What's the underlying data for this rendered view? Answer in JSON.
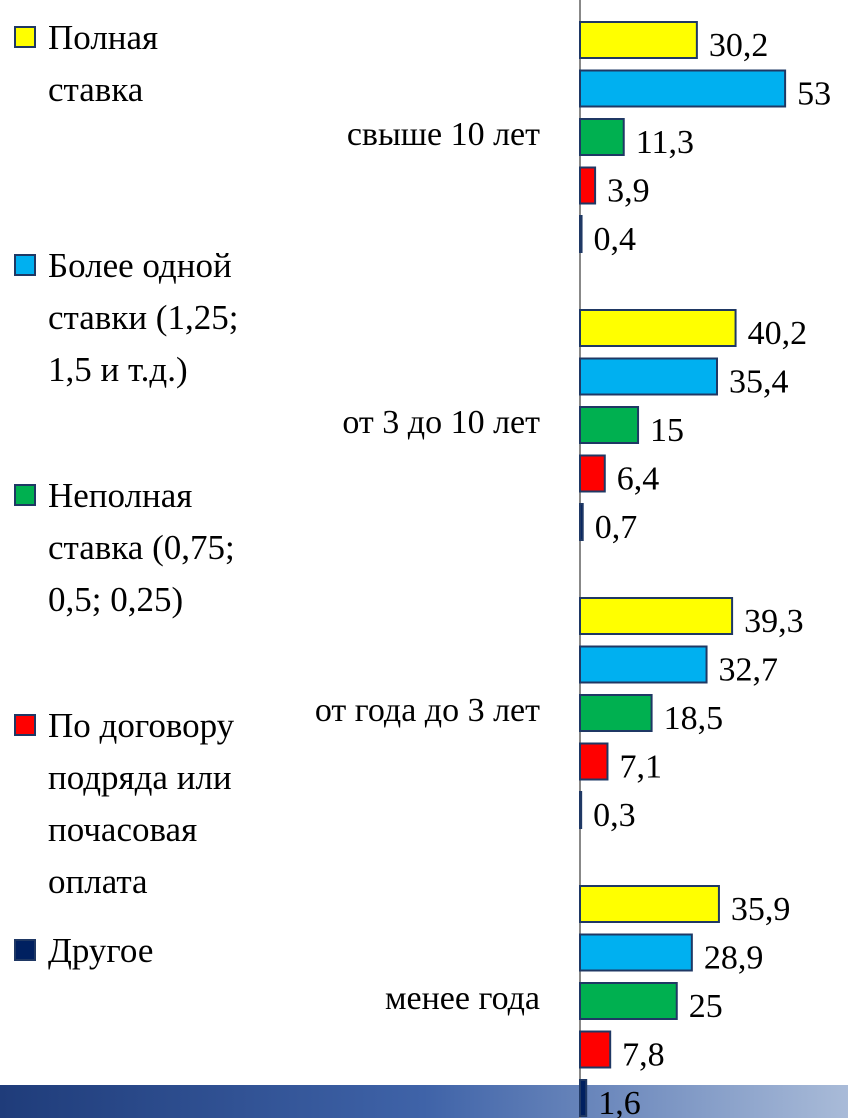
{
  "chart_data": {
    "type": "bar",
    "orientation": "horizontal",
    "legend": "left",
    "categories": [
      "свыше 10 лет",
      "от 3 до 10 лет",
      "от года до 3 лет",
      "менее года"
    ],
    "series": [
      {
        "name": "Полная ставка",
        "color": "#ffff00",
        "values": [
          30.2,
          40.2,
          39.3,
          35.9
        ],
        "value_labels": [
          "30,2",
          "40,2",
          "39,3",
          "35,9"
        ]
      },
      {
        "name": "Более одной ставки (1,25; 1,5 и т.д.)",
        "color": "#00b0f0",
        "values": [
          53,
          35.4,
          32.7,
          28.9
        ],
        "value_labels": [
          "53",
          "35,4",
          "32,7",
          "28,9"
        ]
      },
      {
        "name": "Неполная ставка  (0,75; 0,5; 0,25)",
        "color": "#00b050",
        "values": [
          11.3,
          15,
          18.5,
          25
        ],
        "value_labels": [
          "11,3",
          "15",
          "18,5",
          "25"
        ]
      },
      {
        "name": "По договору подряда или почасовая оплата",
        "color": "#ff0000",
        "values": [
          3.9,
          6.4,
          7.1,
          7.8
        ],
        "value_labels": [
          "3,9",
          "6,4",
          "7,1",
          "7,8"
        ]
      },
      {
        "name": "Другое",
        "color": "#002060",
        "values": [
          0.4,
          0.7,
          0.3,
          1.6
        ],
        "value_labels": [
          "0,4",
          "0,7",
          "0,3",
          "1,6"
        ]
      }
    ]
  }
}
